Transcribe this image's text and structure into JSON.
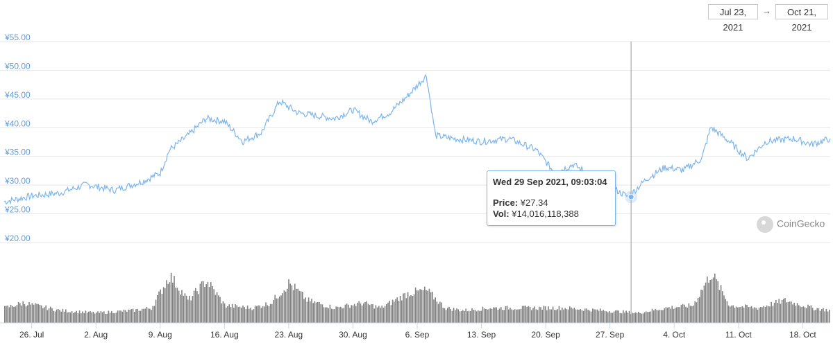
{
  "date_range": {
    "start": "Jul 23, 2021",
    "arrow": "→",
    "end": "Oct 21, 2021"
  },
  "tooltip": {
    "title": "Wed 29 Sep 2021, 09:03:04",
    "price_label": "Price:",
    "price_value": "¥27.34",
    "vol_label": "Vol:",
    "vol_value": "¥14,016,118,388"
  },
  "watermark": "CoinGecko",
  "colors": {
    "price_line": "#7cb5ec",
    "volume_bars": "#808080",
    "grid": "#e6e6e6",
    "tick_text": "#5f9cdb"
  },
  "chart_data": [
    {
      "type": "line",
      "x_range": [
        "2021-07-23",
        "2021-10-21"
      ],
      "y_tick_labels": [
        "¥20.00",
        "¥25.00",
        "¥30.00",
        "¥35.00",
        "¥40.00",
        "¥45.00",
        "¥50.00",
        "¥55.00"
      ],
      "ylim": [
        20,
        55
      ],
      "grid": true,
      "x": [
        "2021-07-23",
        "2021-07-26",
        "2021-07-29",
        "2021-08-01",
        "2021-08-04",
        "2021-08-07",
        "2021-08-09",
        "2021-08-10",
        "2021-08-12",
        "2021-08-14",
        "2021-08-16",
        "2021-08-18",
        "2021-08-20",
        "2021-08-22",
        "2021-08-24",
        "2021-08-26",
        "2021-08-28",
        "2021-08-30",
        "2021-09-01",
        "2021-09-03",
        "2021-09-05",
        "2021-09-07",
        "2021-09-08",
        "2021-09-10",
        "2021-09-13",
        "2021-09-16",
        "2021-09-19",
        "2021-09-21",
        "2021-09-23",
        "2021-09-26",
        "2021-09-29",
        "2021-10-01",
        "2021-10-03",
        "2021-10-05",
        "2021-10-07",
        "2021-10-08",
        "2021-10-10",
        "2021-10-12",
        "2021-10-14",
        "2021-10-17",
        "2021-10-19",
        "2021-10-21"
      ],
      "values": [
        26.5,
        27.5,
        28.0,
        29.5,
        28.5,
        30.0,
        31.5,
        35.5,
        38.0,
        41.0,
        40.5,
        37.0,
        38.5,
        44.0,
        42.0,
        41.5,
        41.0,
        42.5,
        40.5,
        42.0,
        45.0,
        48.5,
        38.0,
        37.5,
        37.0,
        37.5,
        35.5,
        31.5,
        33.0,
        30.0,
        27.34,
        30.5,
        32.5,
        32.0,
        34.0,
        39.5,
        37.0,
        34.0,
        37.0,
        37.5,
        36.5,
        37.5
      ],
      "tooltip_point": {
        "x": "2021-09-29",
        "y": 27.34
      }
    },
    {
      "type": "bar",
      "series_role": "volume",
      "x_tick_labels": [
        "26. Jul",
        "2. Aug",
        "9. Aug",
        "16. Aug",
        "23. Aug",
        "30. Aug",
        "6. Sep",
        "13. Sep",
        "20. Sep",
        "27. Sep",
        "4. Oct",
        "11. Oct",
        "18. Oct"
      ],
      "x": [
        "2021-07-23",
        "2021-07-25",
        "2021-07-29",
        "2021-08-02",
        "2021-08-06",
        "2021-08-08",
        "2021-08-10",
        "2021-08-12",
        "2021-08-14",
        "2021-08-16",
        "2021-08-19",
        "2021-08-21",
        "2021-08-23",
        "2021-08-25",
        "2021-08-28",
        "2021-08-31",
        "2021-09-02",
        "2021-09-05",
        "2021-09-07",
        "2021-09-09",
        "2021-09-11",
        "2021-09-14",
        "2021-09-18",
        "2021-09-22",
        "2021-09-26",
        "2021-09-30",
        "2021-10-03",
        "2021-10-06",
        "2021-10-08",
        "2021-10-10",
        "2021-10-13",
        "2021-10-16",
        "2021-10-19",
        "2021-10-21"
      ],
      "values": [
        0.3,
        0.4,
        0.25,
        0.2,
        0.25,
        0.3,
        0.95,
        0.45,
        0.85,
        0.35,
        0.3,
        0.4,
        0.8,
        0.45,
        0.3,
        0.4,
        0.3,
        0.6,
        0.65,
        0.3,
        0.25,
        0.3,
        0.3,
        0.3,
        0.25,
        0.2,
        0.3,
        0.35,
        1.0,
        0.35,
        0.3,
        0.45,
        0.3,
        0.25
      ]
    }
  ]
}
